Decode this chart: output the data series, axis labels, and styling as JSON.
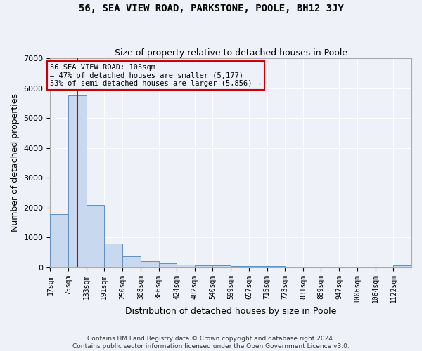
{
  "title": "56, SEA VIEW ROAD, PARKSTONE, POOLE, BH12 3JY",
  "subtitle": "Size of property relative to detached houses in Poole",
  "xlabel": "Distribution of detached houses by size in Poole",
  "ylabel": "Number of detached properties",
  "footer_line1": "Contains HM Land Registry data © Crown copyright and database right 2024.",
  "footer_line2": "Contains public sector information licensed under the Open Government Licence v3.0.",
  "bin_edges": [
    17,
    75,
    133,
    191,
    250,
    308,
    366,
    424,
    482,
    540,
    599,
    657,
    715,
    773,
    831,
    889,
    947,
    1006,
    1064,
    1122,
    1180
  ],
  "bar_heights": [
    1780,
    5760,
    2080,
    800,
    360,
    210,
    120,
    80,
    70,
    50,
    45,
    35,
    30,
    25,
    20,
    18,
    15,
    12,
    10,
    65
  ],
  "bar_color": "#c8d8ee",
  "bar_edge_color": "#6090c0",
  "property_size": 105,
  "vline_color": "#cc0000",
  "annotation_text_line1": "56 SEA VIEW ROAD: 105sqm",
  "annotation_text_line2": "← 47% of detached houses are smaller (5,177)",
  "annotation_text_line3": "53% of semi-detached houses are larger (5,856) →",
  "annotation_box_color": "#cc0000",
  "ylim": [
    0,
    7000
  ],
  "yticks": [
    0,
    1000,
    2000,
    3000,
    4000,
    5000,
    6000,
    7000
  ],
  "background_color": "#eef2f8",
  "grid_color": "#ffffff"
}
